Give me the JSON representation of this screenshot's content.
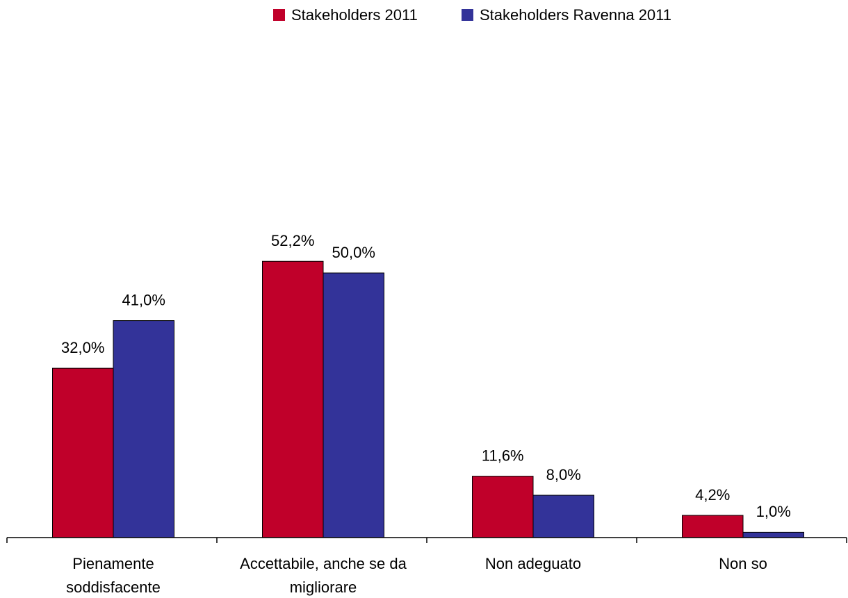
{
  "chart_data": {
    "type": "bar",
    "categories": [
      "Pienamente\nsoddisfacente",
      "Accettabile, anche se da\nmigliorare",
      "Non adeguato",
      "Non so"
    ],
    "series": [
      {
        "name": "Stakeholders 2011",
        "color": "#c0002a",
        "values": [
          32.0,
          52.2,
          11.6,
          4.2
        ],
        "value_labels": [
          "32,0%",
          "52,2%",
          "11,6%",
          "4,2%"
        ]
      },
      {
        "name": "Stakeholders Ravenna 2011",
        "color": "#333399",
        "values": [
          41.0,
          50.0,
          8.0,
          1.0
        ],
        "value_labels": [
          "41,0%",
          "50,0%",
          "8,0%",
          "1,0%"
        ]
      }
    ],
    "legend": "top"
  }
}
